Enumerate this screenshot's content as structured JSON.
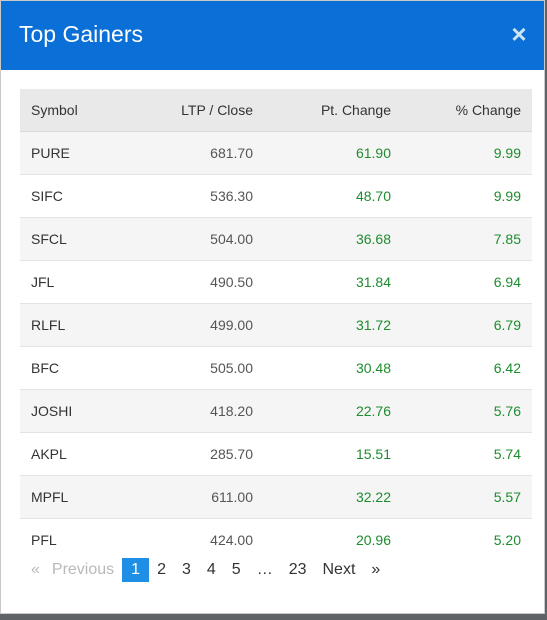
{
  "modal": {
    "title": "Top Gainers",
    "close_symbol": "×"
  },
  "table": {
    "headers": {
      "symbol": "Symbol",
      "ltp": "LTP / Close",
      "pt_change": "Pt. Change",
      "pct_change": "% Change"
    },
    "rows": [
      {
        "symbol": "PURE",
        "ltp": "681.70",
        "pt": "61.90",
        "pct": "9.99"
      },
      {
        "symbol": "SIFC",
        "ltp": "536.30",
        "pt": "48.70",
        "pct": "9.99"
      },
      {
        "symbol": "SFCL",
        "ltp": "504.00",
        "pt": "36.68",
        "pct": "7.85"
      },
      {
        "symbol": "JFL",
        "ltp": "490.50",
        "pt": "31.84",
        "pct": "6.94"
      },
      {
        "symbol": "RLFL",
        "ltp": "499.00",
        "pt": "31.72",
        "pct": "6.79"
      },
      {
        "symbol": "BFC",
        "ltp": "505.00",
        "pt": "30.48",
        "pct": "6.42"
      },
      {
        "symbol": "JOSHI",
        "ltp": "418.20",
        "pt": "22.76",
        "pct": "5.76"
      },
      {
        "symbol": "AKPL",
        "ltp": "285.70",
        "pt": "15.51",
        "pct": "5.74"
      },
      {
        "symbol": "MPFL",
        "ltp": "611.00",
        "pt": "32.22",
        "pct": "5.57"
      },
      {
        "symbol": "PFL",
        "ltp": "424.00",
        "pt": "20.96",
        "pct": "5.20"
      }
    ]
  },
  "pagination": {
    "prev_arrow": "«",
    "prev_label": "Previous",
    "pages": [
      "1",
      "2",
      "3",
      "4",
      "5"
    ],
    "ellipsis": "…",
    "last_page": "23",
    "next_label": "Next",
    "next_arrow": "»",
    "current": "1"
  },
  "colors": {
    "header_bg": "#0a6fd6",
    "gain_green": "#1e8c2e",
    "active_page": "#1f8fe6"
  }
}
